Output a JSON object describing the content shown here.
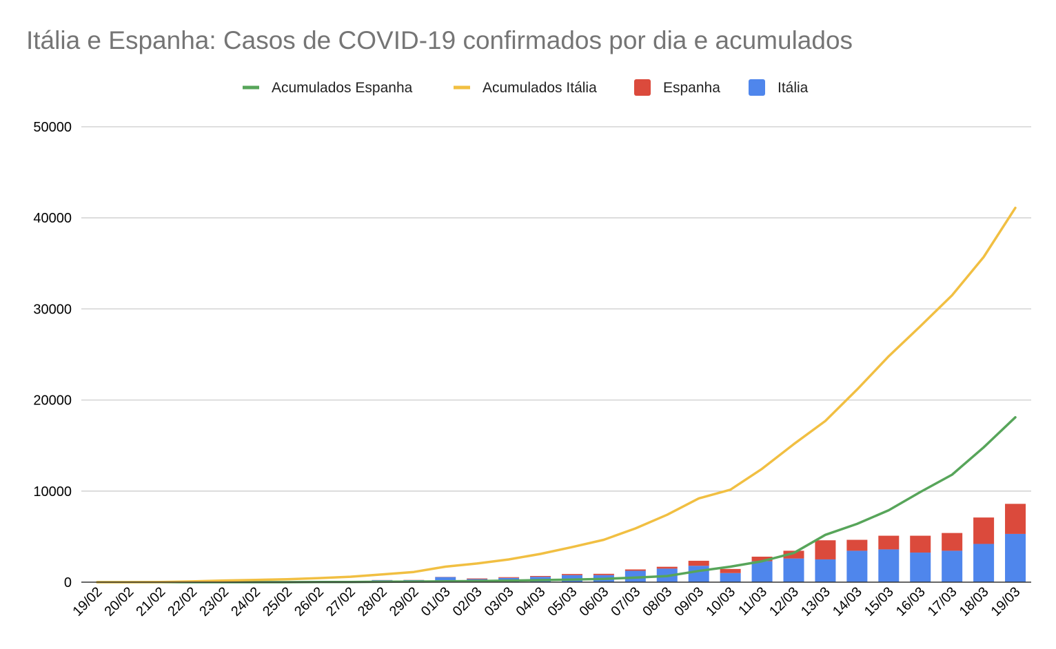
{
  "chart_data": {
    "type": "bar",
    "stacked": true,
    "title": "Itália e Espanha: Casos de COVID-19 confirmados por dia e acumulados",
    "xlabel": "",
    "ylabel": "",
    "ylim": [
      0,
      50000
    ],
    "yticks": [
      "50000",
      "40000",
      "30000",
      "20000",
      "10000",
      "0"
    ],
    "yticks_values": [
      50000,
      40000,
      30000,
      20000,
      10000,
      0
    ],
    "grid": true,
    "legend_position": "top-center",
    "categories": [
      "19/02",
      "20/02",
      "21/02",
      "22/02",
      "23/02",
      "24/02",
      "25/02",
      "26/02",
      "27/02",
      "28/02",
      "29/02",
      "01/03",
      "02/03",
      "03/03",
      "04/03",
      "05/03",
      "06/03",
      "07/03",
      "08/03",
      "09/03",
      "10/03",
      "11/03",
      "12/03",
      "13/03",
      "14/03",
      "15/03",
      "16/03",
      "17/03",
      "18/03",
      "19/03"
    ],
    "bar_series": [
      {
        "name": "Itália",
        "color": "#4f86ec",
        "values": [
          0,
          0,
          0,
          15,
          60,
          60,
          100,
          80,
          120,
          220,
          230,
          560,
          340,
          470,
          590,
          780,
          780,
          1250,
          1490,
          1800,
          1000,
          2300,
          2600,
          2500,
          3450,
          3600,
          3250,
          3450,
          4200,
          5300
        ]
      },
      {
        "name": "Espanha",
        "color": "#db4a3c",
        "values": [
          0,
          0,
          0,
          0,
          0,
          0,
          4,
          10,
          10,
          20,
          20,
          20,
          70,
          80,
          90,
          120,
          140,
          150,
          200,
          550,
          450,
          500,
          850,
          2100,
          1200,
          1500,
          1850,
          1950,
          2900,
          3300
        ]
      }
    ],
    "line_series": [
      {
        "name": "Acumulados Espanha",
        "color": "#57a55a",
        "values": [
          0,
          0,
          0,
          0,
          0,
          0,
          2,
          12,
          25,
          45,
          65,
          90,
          120,
          165,
          225,
          280,
          365,
          500,
          675,
          1230,
          1700,
          2300,
          3200,
          5200,
          6400,
          7900,
          9900,
          11800,
          14800,
          18100
        ]
      },
      {
        "name": "Acumulados Itália",
        "color": "#f1bf42",
        "values": [
          0,
          3,
          20,
          80,
          180,
          250,
          320,
          450,
          600,
          850,
          1120,
          1700,
          2050,
          2500,
          3100,
          3850,
          4650,
          5900,
          7400,
          9200,
          10150,
          12450,
          15150,
          17700,
          21150,
          24800,
          28100,
          31500,
          35700,
          41100
        ]
      }
    ],
    "legend": [
      {
        "label": "Acumulados Espanha",
        "kind": "line",
        "color": "#57a55a"
      },
      {
        "label": "Acumulados Itália",
        "kind": "line",
        "color": "#f1bf42"
      },
      {
        "label": "Espanha",
        "kind": "box",
        "color": "#db4a3c"
      },
      {
        "label": "Itália",
        "kind": "box",
        "color": "#4f86ec"
      }
    ]
  }
}
